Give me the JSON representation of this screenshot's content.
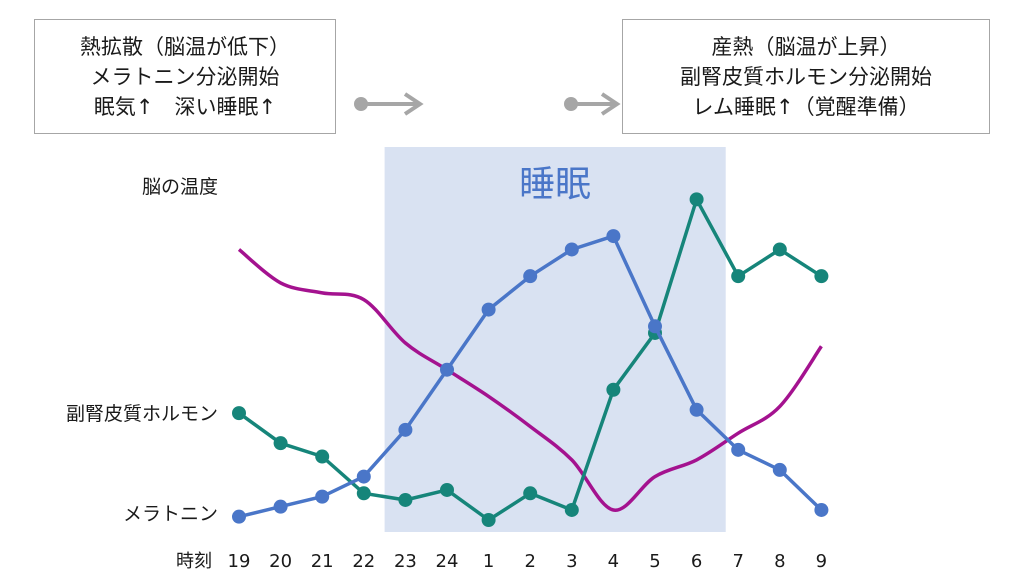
{
  "boxes": {
    "left": {
      "lines": [
        "熱拡散（脳温が低下）",
        "メラトニン分泌開始",
        "眠気↑　深い睡眠↑"
      ]
    },
    "right": {
      "lines": [
        "産熱（脳温が上昇）",
        "副腎皮質ホルモン分泌開始",
        "レム睡眠↑（覚醒準備）"
      ]
    }
  },
  "colors": {
    "brain_temp": "#a4128f",
    "cortisol": "#16857a",
    "melatonin": "#4a76c8",
    "sleep_band": "#d9e2f2",
    "arrow": "#a6a6a6"
  },
  "chart_data": {
    "type": "line",
    "sleep_label": "睡眠",
    "xlabel": "時刻",
    "x": [
      "19",
      "20",
      "21",
      "22",
      "23",
      "24",
      "1",
      "2",
      "3",
      "4",
      "5",
      "6",
      "7",
      "8",
      "9"
    ],
    "sleep_period": [
      "22.5",
      "6.7"
    ],
    "series": [
      {
        "name": "脳の温度",
        "color": "#a4128f",
        "markers": false,
        "values": [
          81,
          71,
          68,
          66,
          53,
          45,
          37,
          28,
          18,
          3,
          13,
          18,
          26,
          34,
          52
        ]
      },
      {
        "name": "副腎皮質ホルモン",
        "color": "#16857a",
        "markers": true,
        "values": [
          32,
          23,
          19,
          8,
          6,
          9,
          0,
          8,
          3,
          39,
          56,
          96,
          73,
          81,
          73
        ]
      },
      {
        "name": "メラトニン",
        "color": "#4a76c8",
        "markers": true,
        "values": [
          1,
          4,
          7,
          13,
          27,
          45,
          63,
          73,
          81,
          85,
          58,
          33,
          21,
          15,
          3
        ]
      }
    ],
    "ylim": [
      0,
      100
    ]
  }
}
